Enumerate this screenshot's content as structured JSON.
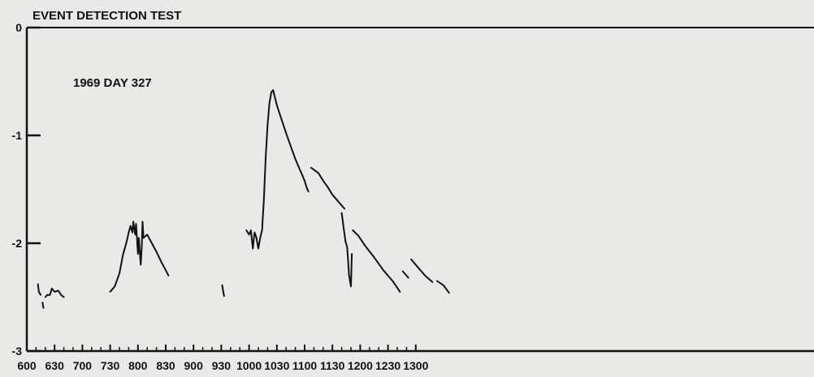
{
  "chart_data": {
    "type": "line",
    "title": "EVENT DETECTION TEST",
    "annotation": "1969 DAY 327",
    "xlabel": "",
    "ylabel": "",
    "x_ticks": [
      "600",
      "630",
      "700",
      "730",
      "800",
      "830",
      "900",
      "930",
      "1000",
      "1030",
      "1100",
      "1130",
      "1200",
      "1230",
      "1300"
    ],
    "y_ticks": [
      "0",
      "-1",
      "-2",
      "-3"
    ],
    "ylim": [
      -3,
      0
    ],
    "grid": false,
    "line_color": "#111111",
    "series": [
      {
        "segments": [
          [
            [
              "06:12",
              -2.38
            ],
            [
              "06:13",
              -2.45
            ],
            [
              "06:15",
              -2.48
            ]
          ],
          [
            [
              "06:17",
              -2.55
            ],
            [
              "06:18",
              -2.6
            ]
          ],
          [
            [
              "06:20",
              -2.5
            ],
            [
              "06:22",
              -2.48
            ],
            [
              "06:25",
              -2.48
            ],
            [
              "06:27",
              -2.42
            ],
            [
              "06:30",
              -2.45
            ],
            [
              "06:34",
              -2.44
            ],
            [
              "06:37",
              -2.48
            ],
            [
              "06:40",
              -2.5
            ]
          ],
          [
            [
              "07:30",
              -2.45
            ],
            [
              "07:35",
              -2.4
            ],
            [
              "07:40",
              -2.28
            ],
            [
              "07:44",
              -2.1
            ],
            [
              "07:48",
              -1.98
            ],
            [
              "07:50",
              -1.9
            ],
            [
              "07:52",
              -1.84
            ],
            [
              "07:54",
              -1.9
            ],
            [
              "07:55",
              -1.8
            ],
            [
              "07:57",
              -1.92
            ],
            [
              "07:58",
              -1.82
            ],
            [
              "08:00",
              -2.1
            ],
            [
              "08:01",
              -1.95
            ],
            [
              "08:03",
              -2.2
            ],
            [
              "08:04",
              -2.05
            ],
            [
              "08:05",
              -1.8
            ],
            [
              "08:06",
              -1.95
            ],
            [
              "08:10",
              -1.92
            ],
            [
              "08:15",
              -2.0
            ],
            [
              "08:20",
              -2.08
            ],
            [
              "08:25",
              -2.17
            ],
            [
              "08:30",
              -2.25
            ],
            [
              "08:33",
              -2.3
            ]
          ],
          [
            [
              "09:31",
              -2.39
            ],
            [
              "09:33",
              -2.49
            ]
          ],
          [
            [
              "09:57",
              -1.88
            ],
            [
              "10:00",
              -1.92
            ],
            [
              "10:02",
              -1.88
            ],
            [
              "10:04",
              -2.05
            ],
            [
              "10:06",
              -1.9
            ],
            [
              "10:08",
              -1.95
            ],
            [
              "10:10",
              -2.05
            ],
            [
              "10:12",
              -1.95
            ],
            [
              "10:14",
              -1.88
            ],
            [
              "10:16",
              -1.6
            ],
            [
              "10:18",
              -1.2
            ],
            [
              "10:20",
              -0.9
            ],
            [
              "10:22",
              -0.7
            ],
            [
              "10:24",
              -0.6
            ],
            [
              "10:26",
              -0.58
            ],
            [
              "10:28",
              -0.65
            ],
            [
              "10:30",
              -0.72
            ],
            [
              "10:35",
              -0.85
            ],
            [
              "10:40",
              -0.98
            ],
            [
              "10:45",
              -1.1
            ],
            [
              "10:50",
              -1.22
            ],
            [
              "10:55",
              -1.32
            ],
            [
              "11:00",
              -1.42
            ],
            [
              "11:02",
              -1.48
            ],
            [
              "11:04",
              -1.52
            ]
          ],
          [
            [
              "11:07",
              -1.3
            ],
            [
              "11:15",
              -1.35
            ],
            [
              "11:20",
              -1.42
            ],
            [
              "11:25",
              -1.48
            ],
            [
              "11:30",
              -1.55
            ],
            [
              "11:35",
              -1.6
            ],
            [
              "11:40",
              -1.65
            ],
            [
              "11:43",
              -1.68
            ]
          ],
          [
            [
              "11:40",
              -1.72
            ],
            [
              "11:42",
              -1.85
            ],
            [
              "11:44",
              -1.98
            ],
            [
              "11:46",
              -2.04
            ],
            [
              "11:48",
              -2.3
            ],
            [
              "11:50",
              -2.4
            ],
            [
              "11:51",
              -2.1
            ]
          ],
          [
            [
              "11:52",
              -1.88
            ],
            [
              "11:58",
              -1.93
            ],
            [
              "12:05",
              -2.02
            ],
            [
              "12:15",
              -2.13
            ],
            [
              "12:25",
              -2.25
            ],
            [
              "12:35",
              -2.35
            ],
            [
              "12:43",
              -2.45
            ]
          ],
          [
            [
              "12:46",
              -2.26
            ],
            [
              "12:52",
              -2.32
            ]
          ],
          [
            [
              "12:55",
              -2.15
            ],
            [
              "13:02",
              -2.22
            ],
            [
              "13:10",
              -2.3
            ],
            [
              "13:18",
              -2.36
            ]
          ],
          [
            [
              "13:23",
              -2.35
            ],
            [
              "13:30",
              -2.39
            ],
            [
              "13:36",
              -2.46
            ]
          ]
        ]
      }
    ]
  }
}
